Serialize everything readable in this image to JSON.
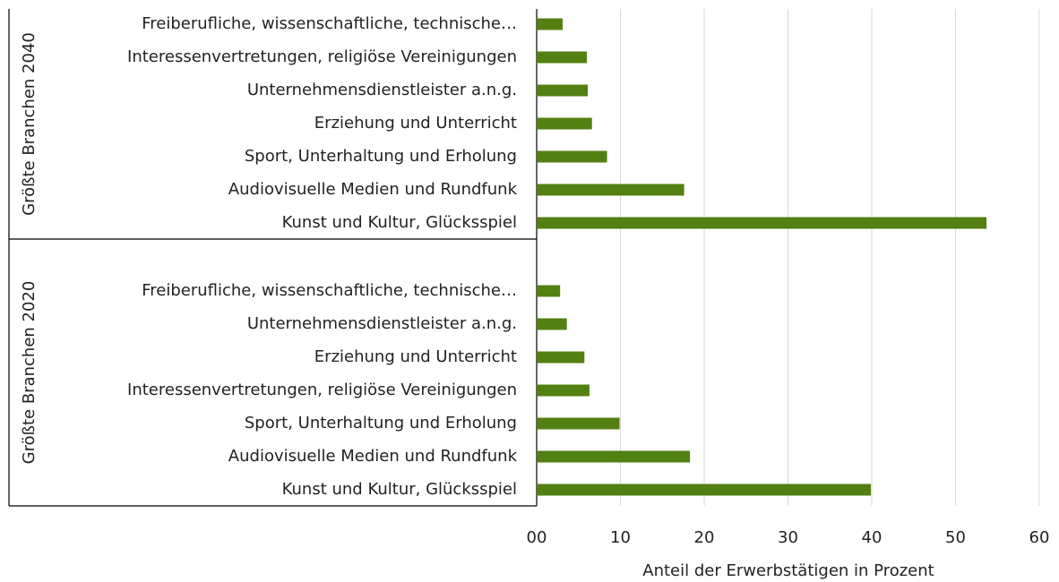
{
  "chart_data": {
    "type": "bar",
    "orientation": "horizontal",
    "color": "#538012",
    "grid": true,
    "groups": [
      {
        "name": "Größte Branchen 2040",
        "categories": [
          "Freiberufliche, wissenschaftliche, technische…",
          "Interessenvertretungen, religiöse Vereinigungen",
          "Unternehmensdienstleister a.n.g.",
          "Erziehung und Unterricht",
          "Sport, Unterhaltung und Erholung",
          "Audiovisuelle Medien und Rundfunk",
          "Kunst und Kultur, Glücksspiel"
        ],
        "values": [
          3.1,
          6.0,
          6.1,
          6.6,
          8.4,
          17.6,
          53.7
        ]
      },
      {
        "name": "Größte Branchen 2020",
        "categories": [
          "Freiberufliche, wissenschaftliche, technische…",
          "Unternehmensdienstleister a.n.g.",
          "Erziehung und Unterricht",
          "Interessenvertretungen, religiöse Vereinigungen",
          "Sport, Unterhaltung und Erholung",
          "Audiovisuelle Medien und Rundfunk",
          "Kunst und Kultur, Glücksspiel"
        ],
        "values": [
          2.8,
          3.6,
          5.7,
          6.3,
          9.9,
          18.3,
          39.9
        ]
      }
    ],
    "xlim": [
      0,
      60
    ],
    "xticks": [
      {
        "value": 0,
        "label": "00"
      },
      10,
      20,
      30,
      40,
      50,
      60
    ],
    "xlabel": "Anteil der Erwerbstätigen in Prozent"
  }
}
